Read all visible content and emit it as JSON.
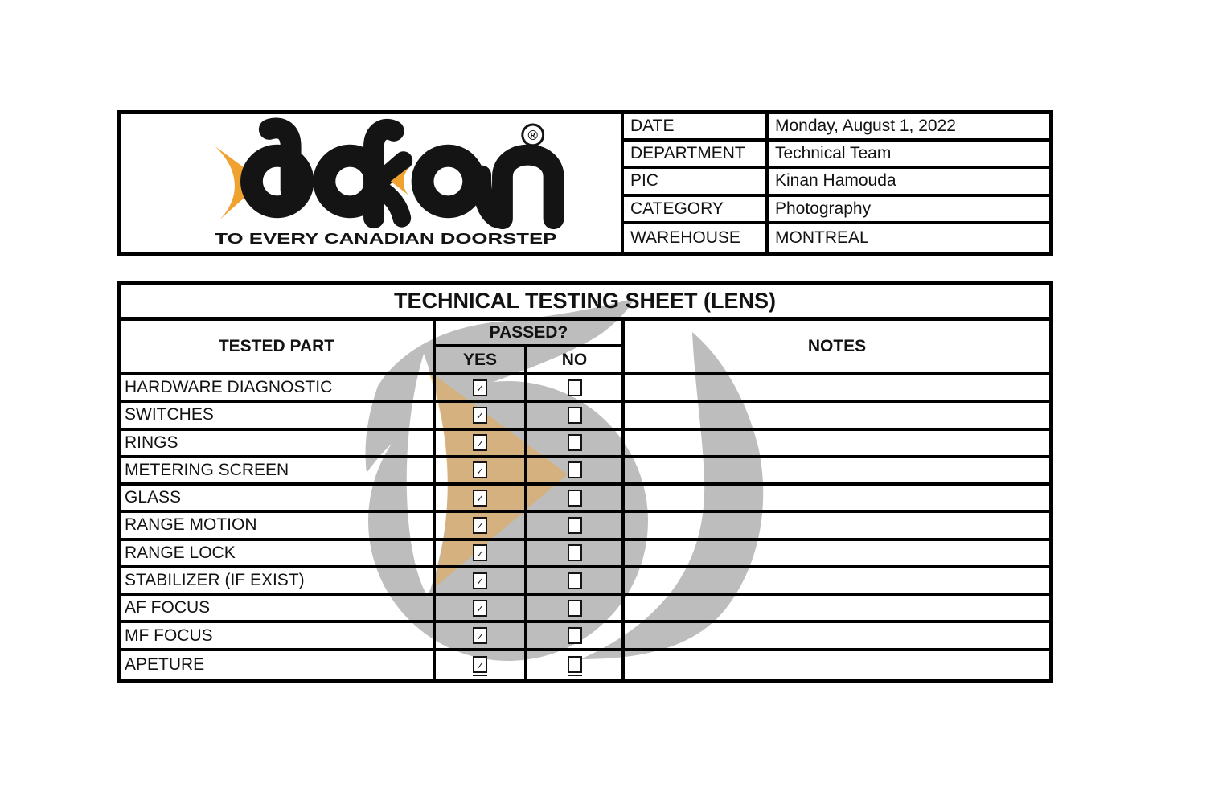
{
  "logo": {
    "brand": "dokan",
    "registered_mark": "®",
    "tagline": "TO EVERY CANADIAN DOORSTEP",
    "arrow_color": "#F0A231",
    "text_color": "#141414"
  },
  "info_table": {
    "rows": [
      {
        "label": "DATE",
        "value": "Monday, August 1, 2022"
      },
      {
        "label": "DEPARTMENT",
        "value": "Technical Team"
      },
      {
        "label": "PIC",
        "value": "Kinan Hamouda"
      },
      {
        "label": "CATEGORY",
        "value": "Photography"
      },
      {
        "label": "WAREHOUSE",
        "value": "MONTREAL"
      }
    ]
  },
  "testing_sheet": {
    "title": "TECHNICAL TESTING SHEET (LENS)",
    "headers": {
      "tested_part": "TESTED PART",
      "passed": "PASSED?",
      "yes": "YES",
      "no": "NO",
      "notes": "NOTES"
    },
    "rows": [
      {
        "part": "HARDWARE DIAGNOSTIC",
        "passed_yes": true,
        "passed_no": false,
        "note": ""
      },
      {
        "part": "SWITCHES",
        "passed_yes": true,
        "passed_no": false,
        "note": ""
      },
      {
        "part": "RINGS",
        "passed_yes": true,
        "passed_no": false,
        "note": ""
      },
      {
        "part": "METERING SCREEN",
        "passed_yes": true,
        "passed_no": false,
        "note": ""
      },
      {
        "part": "GLASS",
        "passed_yes": true,
        "passed_no": false,
        "note": ""
      },
      {
        "part": "RANGE MOTION",
        "passed_yes": true,
        "passed_no": false,
        "note": ""
      },
      {
        "part": "RANGE LOCK",
        "passed_yes": true,
        "passed_no": false,
        "note": ""
      },
      {
        "part": "STABILIZER (IF EXIST)",
        "passed_yes": true,
        "passed_no": false,
        "note": ""
      },
      {
        "part": "AF FOCUS",
        "passed_yes": true,
        "passed_no": false,
        "note": ""
      },
      {
        "part": "MF FOCUS",
        "passed_yes": true,
        "passed_no": false,
        "note": ""
      },
      {
        "part": "APETURE",
        "passed_yes": true,
        "passed_no": false,
        "note": ""
      }
    ]
  },
  "watermark": {
    "gray": "#BDBDBD",
    "orange": "rgba(240,162,49,0.45)"
  },
  "icons": {
    "check": "✓"
  }
}
